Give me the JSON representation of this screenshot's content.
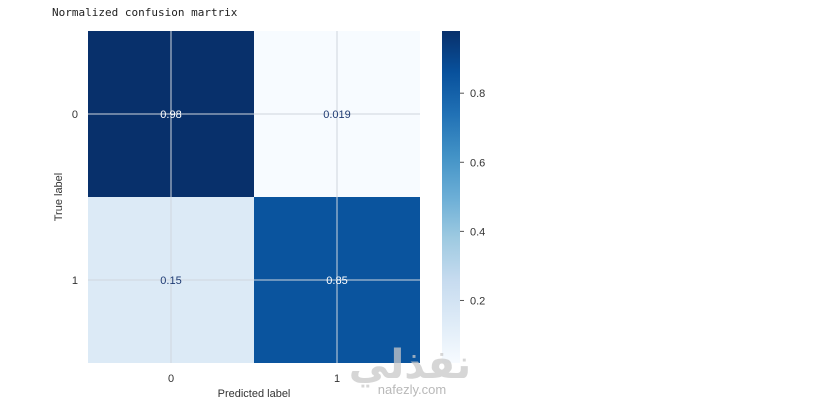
{
  "output_header": "Normalized confusion martrix",
  "chart_data": {
    "type": "heatmap",
    "title": "",
    "xlabel": "Predicted label",
    "ylabel": "True label",
    "x_categories": [
      "0",
      "1"
    ],
    "y_categories": [
      "0",
      "1"
    ],
    "values": [
      [
        0.98,
        0.019
      ],
      [
        0.15,
        0.85
      ]
    ],
    "cell_labels": [
      [
        "0.98",
        "0.019"
      ],
      [
        "0.15",
        "0.85"
      ]
    ],
    "colormap": "Blues",
    "colorbar": {
      "ticks": [
        0.2,
        0.4,
        0.6,
        0.8
      ],
      "tick_labels": [
        "0.2",
        "0.4",
        "0.6",
        "0.8"
      ],
      "range": [
        0.019,
        0.98
      ]
    },
    "grid": true,
    "colors": {
      "low": "#f7fbff",
      "high": "#08306b",
      "text_light": "#ffffff",
      "text_dark": "#1f3b73"
    }
  },
  "watermark": {
    "arabic": "نفذلي",
    "url": "nafezly.com"
  }
}
